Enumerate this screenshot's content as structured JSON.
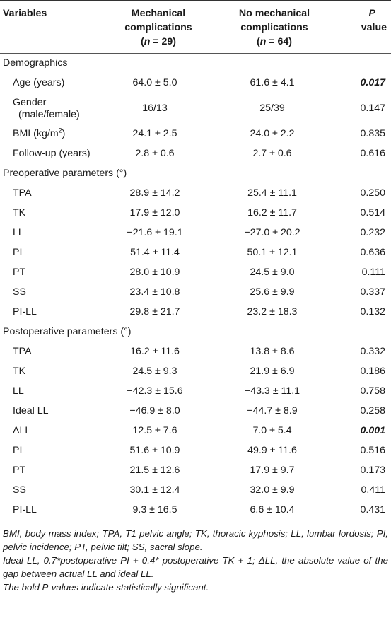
{
  "header": {
    "variables": "Variables",
    "mc_line1": "Mechanical",
    "mc_line2": "complications",
    "mc_n": "(n = 29)",
    "nmc_line1": "No mechanical",
    "nmc_line2": "complications",
    "nmc_n": "(n = 64)",
    "p_line1": "P",
    "p_line2": "value"
  },
  "sections": {
    "demographics": "Demographics",
    "preop": "Preoperative parameters (°)",
    "postop": "Postoperative parameters (°)"
  },
  "rows": {
    "age": {
      "label": "Age (years)",
      "mc": "64.0 ± 5.0",
      "nmc": "61.6 ± 4.1",
      "p": "0.017",
      "bold": true
    },
    "gender": {
      "label_line1": "Gender",
      "label_line2": "(male/female)",
      "mc": "16/13",
      "nmc": "25/39",
      "p": "0.147"
    },
    "bmi": {
      "label": "BMI (kg/m",
      "sup": "2",
      "label_end": ")",
      "mc": "24.1 ± 2.5",
      "nmc": "24.0 ± 2.2",
      "p": "0.835"
    },
    "followup": {
      "label": "Follow-up (years)",
      "mc": "2.8 ± 0.6",
      "nmc": "2.7 ± 0.6",
      "p": "0.616"
    },
    "pre_tpa": {
      "label": "TPA",
      "mc": "28.9 ± 14.2",
      "nmc": "25.4 ± 11.1",
      "p": "0.250"
    },
    "pre_tk": {
      "label": "TK",
      "mc": "17.9 ± 12.0",
      "nmc": "16.2 ± 11.7",
      "p": "0.514"
    },
    "pre_ll": {
      "label": "LL",
      "mc": "−21.6 ± 19.1",
      "nmc": "−27.0 ± 20.2",
      "p": "0.232"
    },
    "pre_pi": {
      "label": "PI",
      "mc": "51.4 ± 11.4",
      "nmc": "50.1 ± 12.1",
      "p": "0.636"
    },
    "pre_pt": {
      "label": "PT",
      "mc": "28.0 ± 10.9",
      "nmc": "24.5 ± 9.0",
      "p": "0.111"
    },
    "pre_ss": {
      "label": "SS",
      "mc": "23.4 ± 10.8",
      "nmc": "25.6 ± 9.9",
      "p": "0.337"
    },
    "pre_pill": {
      "label": "PI-LL",
      "mc": "29.8 ± 21.7",
      "nmc": "23.2 ± 18.3",
      "p": "0.132"
    },
    "post_tpa": {
      "label": "TPA",
      "mc": "16.2 ± 11.6",
      "nmc": "13.8 ± 8.6",
      "p": "0.332"
    },
    "post_tk": {
      "label": "TK",
      "mc": "24.5 ± 9.3",
      "nmc": "21.9 ± 6.9",
      "p": "0.186"
    },
    "post_ll": {
      "label": "LL",
      "mc": "−42.3 ± 15.6",
      "nmc": "−43.3 ± 11.1",
      "p": "0.758"
    },
    "post_ideal": {
      "label": "Ideal LL",
      "mc": "−46.9 ± 8.0",
      "nmc": "−44.7 ± 8.9",
      "p": "0.258"
    },
    "post_dll": {
      "label": "ΔLL",
      "mc": "12.5 ± 7.6",
      "nmc": "7.0 ± 5.4",
      "p": "0.001",
      "bold": true
    },
    "post_pi": {
      "label": "PI",
      "mc": "51.6 ± 10.9",
      "nmc": "49.9 ± 11.6",
      "p": "0.516"
    },
    "post_pt": {
      "label": "PT",
      "mc": "21.5 ± 12.6",
      "nmc": "17.9 ± 9.7",
      "p": "0.173"
    },
    "post_ss": {
      "label": "SS",
      "mc": "30.1 ± 12.4",
      "nmc": "32.0 ± 9.9",
      "p": "0.411"
    },
    "post_pill": {
      "label": "PI-LL",
      "mc": "9.3 ± 16.5",
      "nmc": "6.6 ± 10.4",
      "p": "0.431"
    }
  },
  "footnotes": [
    "BMI, body mass index; TPA, T1 pelvic angle; TK, thoracic kyphosis; LL, lumbar lordosis; PI, pelvic incidence; PT, pelvic tilt; SS, sacral slope.",
    "Ideal LL, 0.7*postoperative PI + 0.4* postoperative TK + 1; ΔLL, the absolute value of the gap between actual LL and ideal LL.",
    "The bold P-values indicate statistically significant."
  ]
}
